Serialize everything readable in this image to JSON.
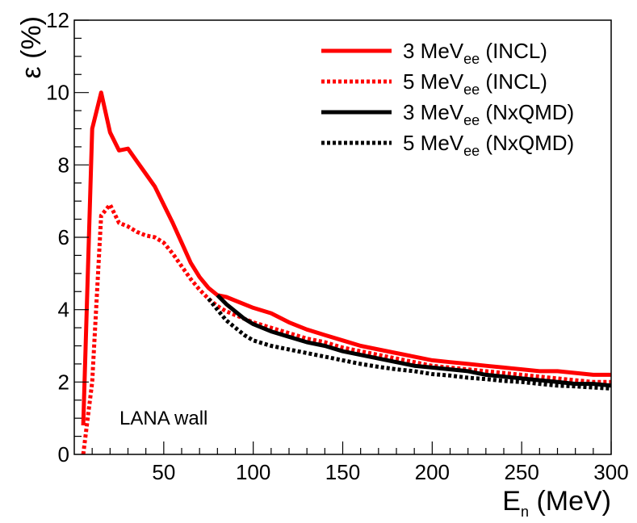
{
  "chart_data": {
    "type": "line",
    "xlabel": {
      "main": "E",
      "sub": "n",
      "rest": " (MeV)"
    },
    "ylabel": "ε (%)",
    "xlim": [
      0,
      300
    ],
    "ylim": [
      0,
      12
    ],
    "x_ticks": [
      50,
      100,
      150,
      200,
      250,
      300
    ],
    "y_ticks": [
      0,
      2,
      4,
      6,
      8,
      10,
      12
    ],
    "annotation": "LANA wall",
    "legend_position": "top-right",
    "series": [
      {
        "name": "3 MeVee (INCL)",
        "label_main": "3 MeV",
        "label_sub": "ee",
        "label_rest": " (INCL)",
        "color": "#ff0000",
        "dash": "solid",
        "x": [
          5,
          10,
          15,
          20,
          25,
          30,
          35,
          40,
          45,
          50,
          55,
          60,
          65,
          70,
          75,
          80,
          85,
          90,
          100,
          110,
          120,
          130,
          140,
          150,
          160,
          170,
          180,
          190,
          200,
          210,
          220,
          230,
          240,
          250,
          260,
          270,
          280,
          290,
          300
        ],
        "y": [
          0.8,
          9.0,
          10.0,
          8.9,
          8.4,
          8.45,
          8.1,
          7.75,
          7.4,
          6.9,
          6.4,
          5.85,
          5.3,
          4.9,
          4.6,
          4.4,
          4.35,
          4.25,
          4.05,
          3.9,
          3.65,
          3.45,
          3.3,
          3.15,
          3.0,
          2.9,
          2.8,
          2.7,
          2.6,
          2.55,
          2.5,
          2.45,
          2.4,
          2.35,
          2.3,
          2.3,
          2.25,
          2.2,
          2.2
        ]
      },
      {
        "name": "5 MeVee (INCL)",
        "label_main": "5 MeV",
        "label_sub": "ee",
        "label_rest": " (INCL)",
        "color": "#ff0000",
        "dash": "dotted",
        "x": [
          5,
          10,
          15,
          20,
          25,
          30,
          35,
          40,
          45,
          50,
          55,
          60,
          65,
          70,
          75,
          80,
          85,
          90,
          100,
          110,
          120,
          130,
          140,
          150,
          160,
          170,
          180,
          190,
          200,
          210,
          220,
          230,
          240,
          250,
          260,
          270,
          280,
          290,
          300
        ],
        "y": [
          0.0,
          2.0,
          6.6,
          6.9,
          6.4,
          6.3,
          6.15,
          6.05,
          6.0,
          5.85,
          5.55,
          5.2,
          4.85,
          4.55,
          4.3,
          4.1,
          3.95,
          3.85,
          3.65,
          3.5,
          3.35,
          3.2,
          3.1,
          2.95,
          2.85,
          2.75,
          2.65,
          2.55,
          2.45,
          2.4,
          2.35,
          2.3,
          2.25,
          2.2,
          2.15,
          2.1,
          2.05,
          2.0,
          2.0
        ]
      },
      {
        "name": "3 MeVee (NxQMD)",
        "label_main": "3 MeV",
        "label_sub": "ee",
        "label_rest": " (NxQMD)",
        "color": "#000000",
        "dash": "solid",
        "x": [
          80,
          85,
          90,
          95,
          100,
          110,
          120,
          130,
          140,
          150,
          160,
          170,
          180,
          190,
          200,
          210,
          220,
          230,
          240,
          250,
          260,
          270,
          280,
          290,
          300
        ],
        "y": [
          4.4,
          4.15,
          3.95,
          3.75,
          3.6,
          3.4,
          3.25,
          3.1,
          3.0,
          2.85,
          2.75,
          2.65,
          2.55,
          2.45,
          2.4,
          2.35,
          2.3,
          2.2,
          2.15,
          2.1,
          2.05,
          2.0,
          1.95,
          1.95,
          1.9
        ]
      },
      {
        "name": "5 MeVee (NxQMD)",
        "label_main": "5 MeV",
        "label_sub": "ee",
        "label_rest": " (NxQMD)",
        "color": "#000000",
        "dash": "dotted",
        "x": [
          75,
          80,
          85,
          90,
          95,
          100,
          110,
          120,
          130,
          140,
          150,
          160,
          170,
          180,
          190,
          200,
          210,
          220,
          230,
          240,
          250,
          260,
          270,
          280,
          290,
          300
        ],
        "y": [
          4.3,
          4.0,
          3.7,
          3.5,
          3.3,
          3.15,
          3.0,
          2.9,
          2.8,
          2.7,
          2.6,
          2.5,
          2.42,
          2.35,
          2.3,
          2.22,
          2.18,
          2.12,
          2.08,
          2.03,
          2.0,
          1.95,
          1.9,
          1.88,
          1.85,
          1.82
        ]
      }
    ]
  }
}
